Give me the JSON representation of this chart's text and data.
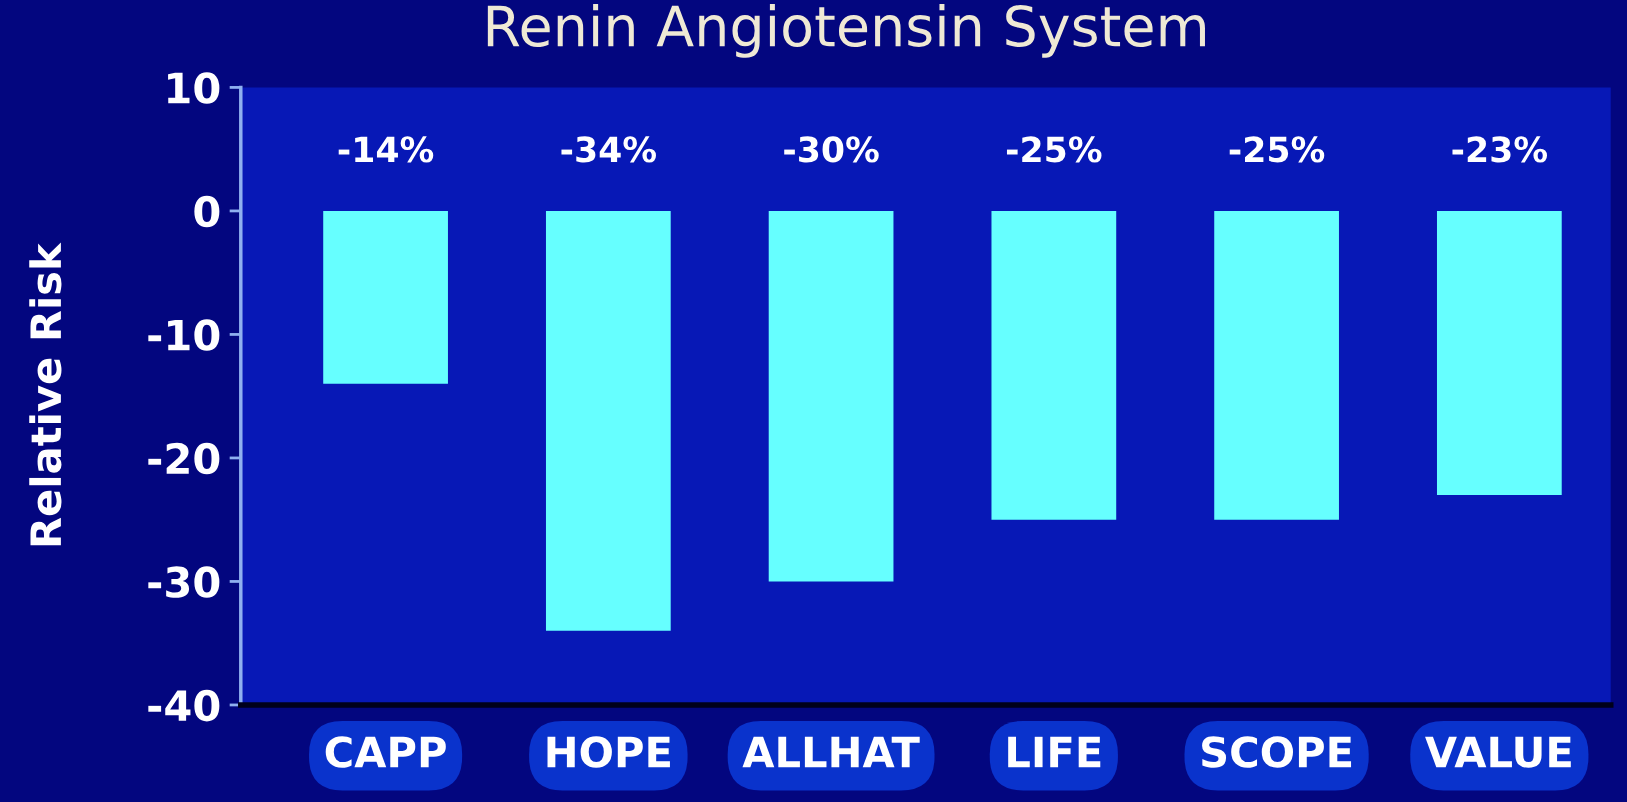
{
  "chart_data": {
    "type": "bar",
    "title": "Renin Angiotensin System",
    "ylabel": "Relative Risk",
    "categories": [
      "CAPP",
      "HOPE",
      "ALLHAT",
      "LIFE",
      "SCOPE",
      "VALUE"
    ],
    "values": [
      -14,
      -34,
      -30,
      -25,
      -25,
      -23
    ],
    "value_labels": [
      "-14%",
      "-34%",
      "-30%",
      "-25%",
      "-25%",
      "-23%"
    ],
    "color": "#66ffff",
    "ylim": [
      -40,
      10
    ],
    "yticks": [
      -40,
      -30,
      -20,
      -10,
      0,
      10
    ]
  }
}
